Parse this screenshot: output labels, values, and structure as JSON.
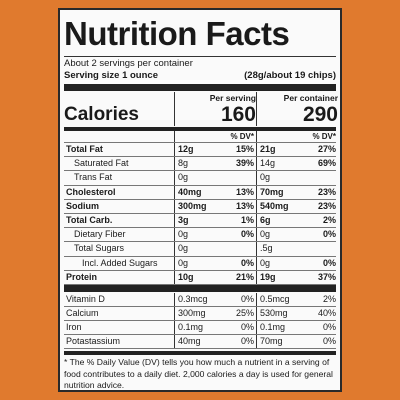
{
  "title": "Nutrition Facts",
  "servings_per_container": "About 2 servings per container",
  "serving_size": {
    "label": "Serving size 1 ounce",
    "amount": "(28g/about 19 chips)"
  },
  "columns": [
    "Per serving",
    "Per container"
  ],
  "calories": {
    "label": "Calories",
    "per_serving": "160",
    "per_container": "290"
  },
  "dv_header": "% DV*",
  "nutrients": [
    {
      "label": "Total Fat",
      "serving_amount": "12g",
      "serving_dv": "15%",
      "container_amount": "21g",
      "container_dv": "27%"
    },
    {
      "label": "Saturated Fat",
      "serving_amount": "8g",
      "serving_dv": "39%",
      "container_amount": "14g",
      "container_dv": "69%"
    },
    {
      "label": "Trans Fat",
      "serving_amount": "0g",
      "container_amount": "0g"
    },
    {
      "label": "Cholesterol",
      "serving_amount": "40mg",
      "serving_dv": "13%",
      "container_amount": "70mg",
      "container_dv": "23%"
    },
    {
      "label": "Sodium",
      "serving_amount": "300mg",
      "serving_dv": "13%",
      "container_amount": "540mg",
      "container_dv": "23%"
    },
    {
      "label": "Total Carb.",
      "serving_amount": "3g",
      "serving_dv": "1%",
      "container_amount": "6g",
      "container_dv": "2%"
    },
    {
      "label": "Dietary Fiber",
      "serving_amount": "0g",
      "serving_dv": "0%",
      "container_amount": "0g",
      "container_dv": "0%"
    },
    {
      "label": "Total Sugars",
      "serving_amount": "0g",
      "container_amount": ".5g"
    },
    {
      "label": "Incl. Added Sugars",
      "serving_amount": "0g",
      "serving_dv": "0%",
      "container_amount": "0g",
      "container_dv": "0%"
    },
    {
      "label": "Protein",
      "serving_amount": "10g",
      "serving_dv": "21%",
      "container_amount": "19g",
      "container_dv": "37%"
    }
  ],
  "vitamins": [
    {
      "label": "Vitamin D",
      "serving_amount": "0.3mcg",
      "serving_dv": "0%",
      "container_amount": "0.5mcg",
      "container_dv": "2%"
    },
    {
      "label": "Calcium",
      "serving_amount": "300mg",
      "serving_dv": "25%",
      "container_amount": "530mg",
      "container_dv": "40%"
    },
    {
      "label": "Iron",
      "serving_amount": "0.1mg",
      "serving_dv": "0%",
      "container_amount": "0.1mg",
      "container_dv": "0%"
    },
    {
      "label": "Potastassium",
      "serving_amount": "40mg",
      "serving_dv": "0%",
      "container_amount": "70mg",
      "container_dv": "0%"
    }
  ],
  "footnote": "* The % Daily Value (DV) tells you how much a nutrient in a serving of food contributes to a daily diet. 2,000 calories a day is used for general nutrition advice."
}
